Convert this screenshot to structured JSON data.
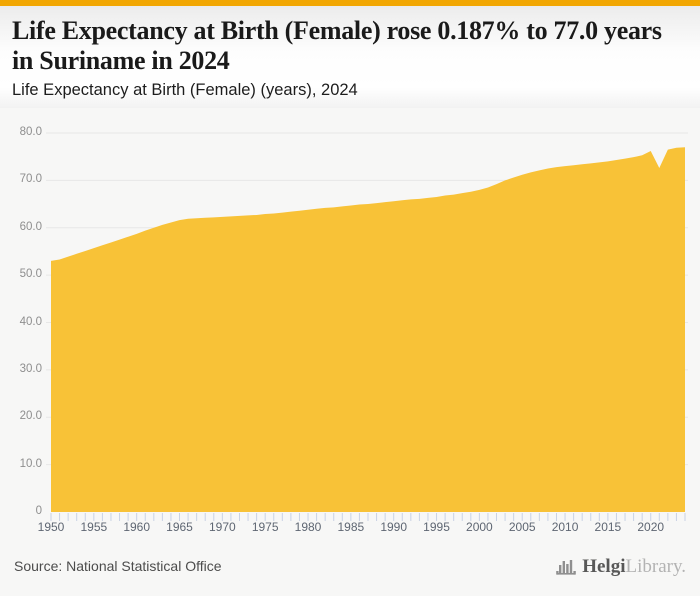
{
  "header": {
    "title": "Life Expectancy at Birth (Female) rose 0.187% to 77.0 years in Suriname in 2024",
    "subtitle": "Life Expectancy at Birth (Female) (years), 2024"
  },
  "footer": {
    "source": "Source: National Statistical Office",
    "logo_primary": "Helgi",
    "logo_secondary": "Library."
  },
  "colors": {
    "top_bar": "#F2A702",
    "area_fill": "#F8C237",
    "gridline": "#e7e7e7",
    "x_tick": "#c9d2e4"
  },
  "chart_data": {
    "type": "area",
    "series_name": "Life Expectancy at Birth (Female)",
    "unit": "years",
    "country": "Suriname",
    "year_start": 1950,
    "year_end": 2024,
    "values": [
      53.0,
      53.3,
      53.9,
      54.5,
      55.1,
      55.7,
      56.3,
      56.9,
      57.5,
      58.1,
      58.7,
      59.4,
      60.0,
      60.6,
      61.1,
      61.6,
      61.9,
      62.0,
      62.1,
      62.2,
      62.3,
      62.4,
      62.5,
      62.6,
      62.7,
      62.9,
      63.0,
      63.2,
      63.4,
      63.6,
      63.8,
      64.0,
      64.2,
      64.3,
      64.5,
      64.7,
      64.9,
      65.0,
      65.2,
      65.4,
      65.6,
      65.8,
      66.0,
      66.1,
      66.3,
      66.5,
      66.8,
      67.0,
      67.3,
      67.6,
      68.0,
      68.5,
      69.2,
      70.0,
      70.6,
      71.2,
      71.7,
      72.1,
      72.5,
      72.8,
      73.0,
      73.2,
      73.4,
      73.6,
      73.8,
      74.0,
      74.3,
      74.6,
      74.9,
      75.3,
      76.2,
      72.6,
      76.5,
      76.9,
      77.0
    ],
    "area_color": "#F8C237",
    "ylim": [
      0,
      84
    ],
    "grid": true,
    "legend": "none",
    "y_ticks": [
      {
        "value": 80,
        "label": "80.0"
      },
      {
        "value": 70,
        "label": "70.0"
      },
      {
        "value": 60,
        "label": "60.0"
      },
      {
        "value": 50,
        "label": "50.0"
      },
      {
        "value": 40,
        "label": "40.0"
      },
      {
        "value": 30,
        "label": "30.0"
      },
      {
        "value": 20,
        "label": "20.0"
      },
      {
        "value": 10,
        "label": "10.0"
      },
      {
        "value": 0,
        "label": "0"
      }
    ],
    "x_labels": [
      "1950",
      "1955",
      "1960",
      "1965",
      "1970",
      "1975",
      "1980",
      "1985",
      "1990",
      "1995",
      "2000",
      "2005",
      "2010",
      "2015",
      "2020"
    ]
  }
}
